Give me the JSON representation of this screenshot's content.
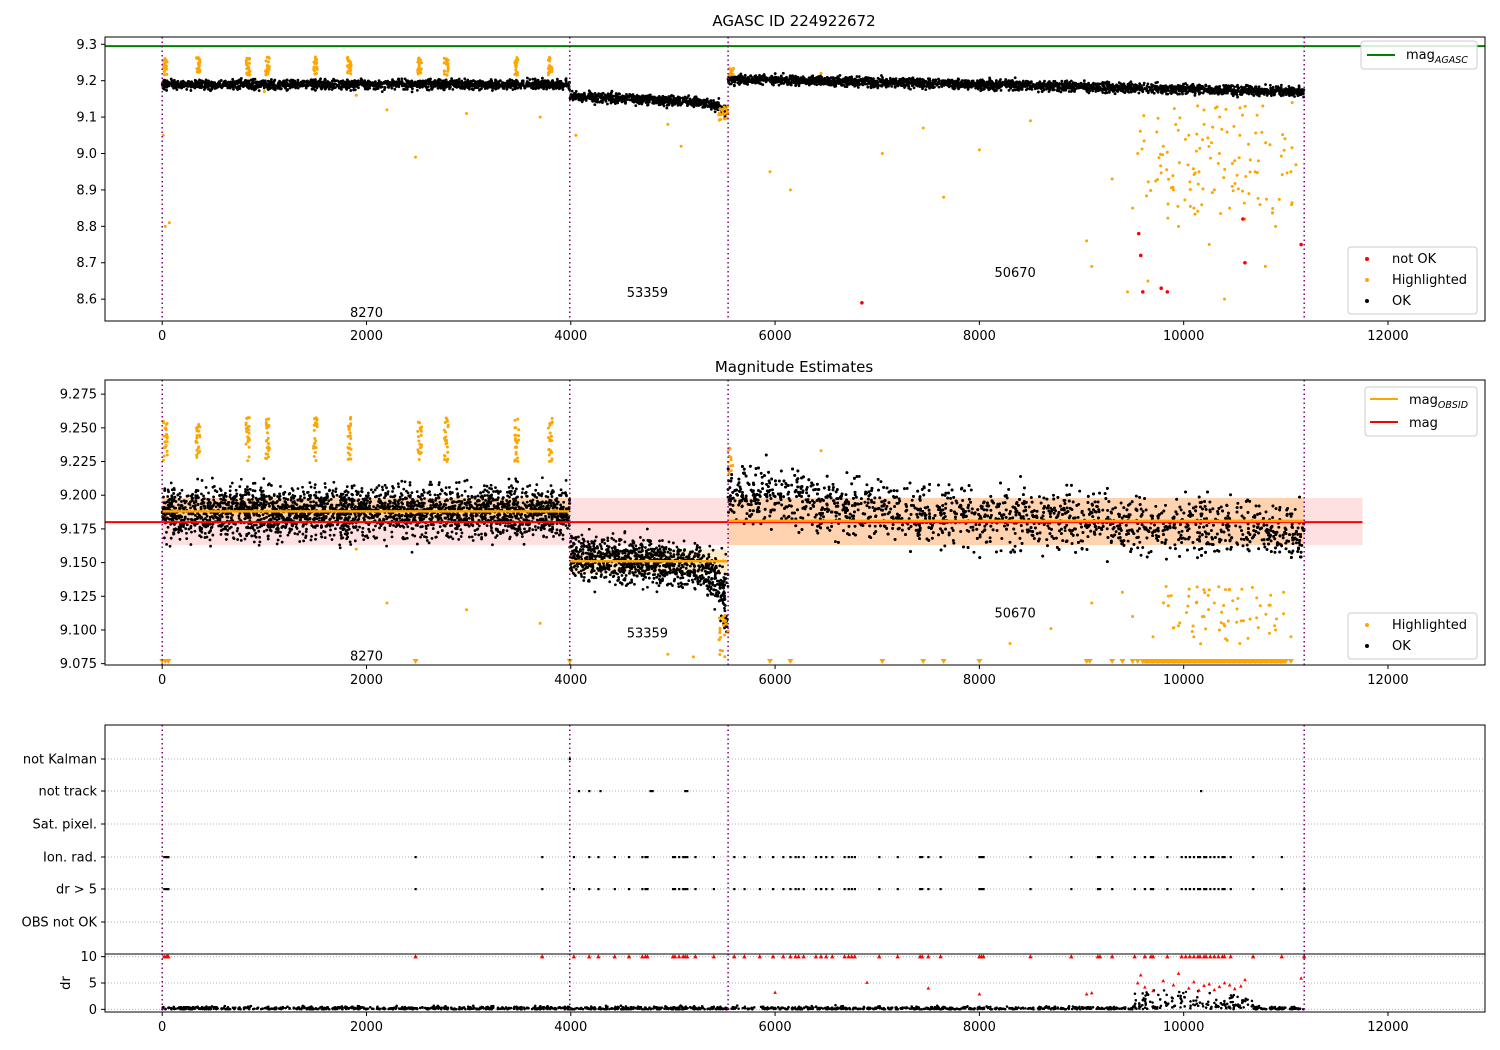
{
  "chart_data": [
    {
      "type": "scatter",
      "title": "AGASC ID 224922672",
      "xlim": [
        -560,
        12950
      ],
      "ylim": [
        8.54,
        9.32
      ],
      "xticks": [
        "0",
        "2000",
        "4000",
        "6000",
        "8000",
        "10000",
        "12000"
      ],
      "yticks": [
        "8.6",
        "8.7",
        "8.8",
        "8.9",
        "9.0",
        "9.1",
        "9.2",
        "9.3"
      ],
      "mag_agasc": 9.295,
      "obs_boundaries": [
        0,
        3990,
        5540,
        11180
      ],
      "obs_labels": [
        {
          "text": "8270",
          "x": 2000,
          "y": 8.565
        },
        {
          "text": "53359",
          "x": 4750,
          "y": 8.62
        },
        {
          "text": "50670",
          "x": 8350,
          "y": 8.675
        }
      ],
      "segments": [
        {
          "x0": 0,
          "x1": 3990,
          "y0": 9.19,
          "y1": 9.19
        },
        {
          "x0": 3990,
          "x1": 5540,
          "y0": 9.158,
          "y1": 9.138
        },
        {
          "x0": 5540,
          "x1": 11180,
          "y0": 9.205,
          "y1": 9.17
        }
      ],
      "legend_top": {
        "position": "top-right",
        "label": "mag",
        "subscript": "AGASC",
        "color": "#008000"
      },
      "legend_bottom": {
        "position": "lower-right",
        "entries": [
          {
            "label": "not OK",
            "color": "#ff0000"
          },
          {
            "label": "Highlighted",
            "color": "#ffa500"
          },
          {
            "label": "OK",
            "color": "#000000"
          }
        ]
      },
      "highlighted_points": [
        [
          10,
          9.05
        ],
        [
          30,
          8.8
        ],
        [
          70,
          8.81
        ],
        [
          1000,
          9.17
        ],
        [
          1900,
          9.16
        ],
        [
          2200,
          9.12
        ],
        [
          2480,
          8.99
        ],
        [
          2980,
          9.11
        ],
        [
          3700,
          9.1
        ],
        [
          4050,
          9.05
        ],
        [
          4950,
          9.08
        ],
        [
          5080,
          9.02
        ],
        [
          5950,
          8.95
        ],
        [
          6150,
          8.9
        ],
        [
          6450,
          9.22
        ],
        [
          7050,
          9.0
        ],
        [
          7450,
          9.07
        ],
        [
          7650,
          8.88
        ],
        [
          8000,
          9.01
        ],
        [
          8500,
          9.09
        ],
        [
          9050,
          8.76
        ],
        [
          9100,
          8.69
        ],
        [
          9300,
          8.93
        ],
        [
          9450,
          8.62
        ],
        [
          9500,
          8.85
        ],
        [
          9550,
          9.0
        ],
        [
          9650,
          8.65
        ],
        [
          9800,
          9.02
        ],
        [
          9900,
          8.9
        ],
        [
          9950,
          8.8
        ],
        [
          10050,
          9.05
        ],
        [
          10100,
          8.85
        ],
        [
          10150,
          8.95
        ],
        [
          10200,
          9.08
        ],
        [
          10250,
          8.75
        ],
        [
          10300,
          8.9
        ],
        [
          10350,
          9.0
        ],
        [
          10400,
          8.6
        ],
        [
          10450,
          8.85
        ],
        [
          10500,
          8.98
        ],
        [
          10550,
          9.05
        ],
        [
          10600,
          8.82
        ],
        [
          10700,
          8.95
        ],
        [
          10800,
          8.69
        ],
        [
          10900,
          8.8
        ],
        [
          11050,
          8.95
        ]
      ],
      "notok_points": [
        [
          6850,
          8.59
        ],
        [
          9560,
          8.78
        ],
        [
          9580,
          8.72
        ],
        [
          9600,
          8.62
        ],
        [
          9780,
          8.63
        ],
        [
          9840,
          8.62
        ],
        [
          10580,
          8.82
        ],
        [
          10600,
          8.7
        ],
        [
          11150,
          8.75
        ]
      ]
    },
    {
      "type": "scatter",
      "title": "Magnitude Estimates",
      "xlim": [
        -560,
        12950
      ],
      "ylim": [
        9.074,
        9.2855
      ],
      "xticks": [
        "0",
        "2000",
        "4000",
        "6000",
        "8000",
        "10000",
        "12000"
      ],
      "yticks": [
        "9.075",
        "9.100",
        "9.125",
        "9.150",
        "9.175",
        "9.200",
        "9.225",
        "9.250",
        "9.275"
      ],
      "mag": 9.18,
      "mag_band": [
        9.163,
        9.198
      ],
      "mag_obsid": [
        {
          "x0": 0,
          "x1": 3990,
          "y": 9.188
        },
        {
          "x0": 3990,
          "x1": 5540,
          "y": 9.151
        },
        {
          "x0": 5540,
          "x1": 11180,
          "y": 9.181
        }
      ],
      "obs_labels": [
        {
          "text": "8270",
          "x": 2000,
          "y": 9.081
        },
        {
          "text": "53359",
          "x": 4750,
          "y": 9.098
        },
        {
          "text": "50670",
          "x": 8350,
          "y": 9.113
        }
      ],
      "legend_top": {
        "position": "top-right",
        "entries": [
          {
            "label": "mag",
            "subscript": "OBSID",
            "color": "#ffa500"
          },
          {
            "label": "mag",
            "subscript": "",
            "color": "#ff0000"
          }
        ]
      },
      "legend_bottom": {
        "position": "lower-right",
        "entries": [
          {
            "label": "Highlighted",
            "color": "#ffa500"
          },
          {
            "label": "OK",
            "color": "#000000"
          }
        ]
      },
      "highlighted_points": [
        [
          1900,
          9.16
        ],
        [
          2200,
          9.12
        ],
        [
          2980,
          9.115
        ],
        [
          3700,
          9.105
        ],
        [
          4950,
          9.082
        ],
        [
          5200,
          9.08
        ],
        [
          6450,
          9.233
        ],
        [
          8300,
          9.09
        ],
        [
          8700,
          9.101
        ],
        [
          9100,
          9.12
        ],
        [
          9400,
          9.128
        ],
        [
          9500,
          9.11
        ],
        [
          9700,
          9.095
        ],
        [
          9850,
          9.118
        ],
        [
          9950,
          9.103
        ],
        [
          10050,
          9.125
        ],
        [
          10100,
          9.095
        ],
        [
          10200,
          9.11
        ],
        [
          10300,
          9.12
        ],
        [
          10350,
          9.1
        ],
        [
          10450,
          9.13
        ],
        [
          10550,
          9.09
        ],
        [
          10650,
          9.108
        ],
        [
          10750,
          9.118
        ],
        [
          10900,
          9.1
        ],
        [
          11050,
          9.095
        ]
      ],
      "clipped_markers": [
        0,
        30,
        60,
        2480,
        3990,
        5950,
        6150,
        7050,
        7450,
        7650,
        8000,
        9050,
        9080,
        9300,
        9400,
        9500,
        9550,
        9600,
        9650,
        9700,
        9750,
        9800,
        9850,
        9900,
        9950,
        10000,
        10050,
        10100,
        10150,
        10200,
        10250,
        10300,
        10350,
        10400,
        10450,
        10500,
        10550,
        10600,
        10650,
        10700,
        10750,
        10900,
        10950,
        11000,
        11050
      ]
    },
    {
      "type": "scatter",
      "title": "",
      "xlim": [
        -560,
        12950
      ],
      "xticks": [
        "0",
        "2000",
        "4000",
        "6000",
        "8000",
        "10000",
        "12000"
      ],
      "obs_boundaries": [
        0,
        3990,
        5540,
        11180
      ],
      "flag_rows": [
        "not Kalman",
        "not track",
        "Sat. pixel.",
        "Ion. rad.",
        "dr > 5",
        "OBS not OK"
      ],
      "flags": {
        "not Kalman": [
          3990
        ],
        "not track": [
          4080,
          4180,
          4290,
          4780,
          4800,
          5120,
          5140,
          10170
        ],
        "Sat. pixel.": [],
        "Ion. rad.": [
          20,
          40,
          50,
          60,
          2480,
          3720,
          4030,
          4180,
          4270,
          4430,
          4570,
          4700,
          4730,
          4750,
          5000,
          5020,
          5060,
          5100,
          5120,
          5140,
          5220,
          5400,
          5600,
          5700,
          5850,
          5980,
          6080,
          6150,
          6200,
          6230,
          6280,
          6400,
          6450,
          6500,
          6560,
          6680,
          6720,
          6750,
          6780,
          7020,
          7200,
          7420,
          7440,
          7500,
          7620,
          8000,
          8020,
          8040,
          8500,
          8900,
          9160,
          9180,
          9300,
          9520,
          9620,
          9680,
          9700,
          9840,
          9980,
          10020,
          10060,
          10100,
          10140,
          10160,
          10200,
          10220,
          10260,
          10300,
          10340,
          10380,
          10400,
          10460,
          10680,
          10960
        ],
        "dr > 5": [
          20,
          40,
          50,
          60,
          2480,
          3720,
          4030,
          4180,
          4270,
          4430,
          4570,
          4700,
          4730,
          4750,
          5000,
          5020,
          5060,
          5100,
          5120,
          5140,
          5220,
          5400,
          5600,
          5700,
          5850,
          5980,
          6080,
          6150,
          6200,
          6230,
          6280,
          6400,
          6450,
          6500,
          6560,
          6680,
          6720,
          6750,
          6780,
          7020,
          7200,
          7420,
          7440,
          7500,
          7620,
          8000,
          8020,
          8040,
          8500,
          8900,
          9160,
          9180,
          9300,
          9520,
          9620,
          9680,
          9700,
          9840,
          9980,
          10020,
          10060,
          10100,
          10140,
          10160,
          10200,
          10220,
          10260,
          10300,
          10340,
          10380,
          10400,
          10460,
          10680,
          10960,
          11180
        ],
        "OBS not OK": []
      }
    },
    {
      "type": "scatter",
      "title": "",
      "ylabel": "dr",
      "xlim": [
        -560,
        12950
      ],
      "ylim": [
        -0.5,
        10.5
      ],
      "xticks": [
        "0",
        "2000",
        "4000",
        "6000",
        "8000",
        "10000",
        "12000"
      ],
      "yticks": [
        "0",
        "5",
        "10"
      ],
      "obs_boundaries": [
        0,
        3990,
        5540,
        11180
      ],
      "red_points_at_cap": [
        20,
        40,
        50,
        60,
        2480,
        3720,
        4030,
        4180,
        4270,
        4430,
        4570,
        4700,
        4730,
        4750,
        5000,
        5020,
        5060,
        5100,
        5120,
        5140,
        5220,
        5400,
        5600,
        5700,
        5850,
        5980,
        6080,
        6150,
        6200,
        6230,
        6280,
        6400,
        6450,
        6500,
        6560,
        6680,
        6720,
        6750,
        6780,
        7020,
        7200,
        7420,
        7440,
        7500,
        7620,
        8000,
        8020,
        8040,
        8500,
        8900,
        9160,
        9180,
        9300,
        9520,
        9620,
        9680,
        9700,
        9840,
        9980,
        10020,
        10060,
        10100,
        10140,
        10160,
        10200,
        10220,
        10260,
        10300,
        10340,
        10380,
        10400,
        10460,
        10680,
        10960,
        11180
      ],
      "red_points": [
        [
          6000,
          3.2
        ],
        [
          6900,
          5.1
        ],
        [
          7500,
          4.0
        ],
        [
          8000,
          2.9
        ],
        [
          9050,
          2.9
        ],
        [
          9100,
          3.1
        ],
        [
          9550,
          5.0
        ],
        [
          9580,
          6.5
        ],
        [
          9620,
          4.2
        ],
        [
          9700,
          3.5
        ],
        [
          9800,
          5.4
        ],
        [
          9900,
          4.6
        ],
        [
          9950,
          6.8
        ],
        [
          10050,
          4.0
        ],
        [
          10100,
          5.2
        ],
        [
          10150,
          3.6
        ],
        [
          10200,
          4.5
        ],
        [
          10250,
          4.8
        ],
        [
          10300,
          3.7
        ],
        [
          10350,
          4.3
        ],
        [
          10400,
          5.0
        ],
        [
          10450,
          4.6
        ],
        [
          10500,
          3.9
        ],
        [
          10560,
          4.4
        ],
        [
          10600,
          5.6
        ],
        [
          11150,
          5.9
        ]
      ]
    }
  ]
}
